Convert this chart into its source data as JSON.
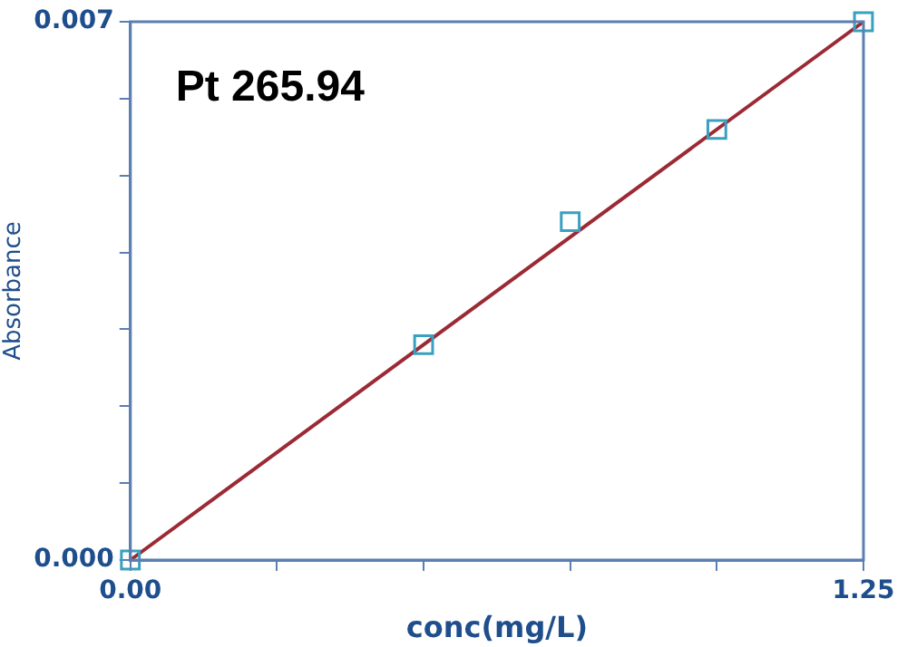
{
  "chart_data": {
    "type": "scatter",
    "xlabel": "conc(mg/L)",
    "ylabel": "Absorbance",
    "annotations": [
      "Pt 265.94"
    ],
    "xlim": [
      0,
      1.25
    ],
    "ylim": [
      0,
      0.007
    ],
    "xticks": [
      {
        "value": 0,
        "label": "0.00"
      },
      {
        "value": 0.25,
        "label": null
      },
      {
        "value": 0.5,
        "label": null
      },
      {
        "value": 0.75,
        "label": null
      },
      {
        "value": 1,
        "label": null
      },
      {
        "value": 1.25,
        "label": "1.25"
      }
    ],
    "yticks": [
      {
        "value": 0,
        "label": "0.000"
      },
      {
        "value": 0.001,
        "label": null
      },
      {
        "value": 0.002,
        "label": null
      },
      {
        "value": 0.003,
        "label": null
      },
      {
        "value": 0.004,
        "label": null
      },
      {
        "value": 0.005,
        "label": null
      },
      {
        "value": 0.006,
        "label": null
      },
      {
        "value": 0.007,
        "label": "0.007"
      }
    ],
    "grid": false,
    "legend": false,
    "series": [
      {
        "type": "scatter",
        "marker": "square",
        "color": "#3a9fc0",
        "x": [
          0,
          0.5,
          0.75,
          1,
          1.25
        ],
        "values": [
          0,
          0.0028,
          0.0044,
          0.0056,
          0.007
        ]
      },
      {
        "type": "line",
        "marker": "none",
        "line_style": "solid",
        "color": "#9b2a35",
        "x": [
          0,
          1.25
        ],
        "values": [
          0,
          0.007
        ]
      }
    ]
  }
}
